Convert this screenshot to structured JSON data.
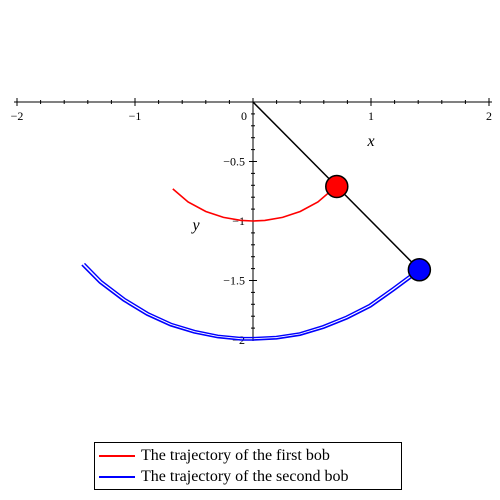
{
  "chart_data": {
    "type": "line",
    "title": "",
    "xlabel": "x",
    "ylabel": "y",
    "xlim": [
      -2,
      2
    ],
    "ylim": [
      -2.7,
      0.8
    ],
    "x_ticks": [
      -2,
      -1,
      0,
      1,
      2
    ],
    "x_tick_labels": [
      "-2",
      "-1",
      "0",
      "1",
      "2"
    ],
    "y_ticks": [
      -0.5,
      -1,
      -1.5,
      -2
    ],
    "y_tick_labels": [
      "-0.5",
      "-1",
      "-1.5",
      "-2"
    ],
    "grid": false,
    "legend_placement": "bottom",
    "series": [
      {
        "name": "The trajectory of the first bob",
        "color": "#ff0000",
        "x": [
          -0.68,
          -0.55,
          -0.4,
          -0.25,
          -0.1,
          0.0,
          0.1,
          0.25,
          0.4,
          0.55,
          0.68,
          0.71
        ],
        "y": [
          -0.73,
          -0.84,
          -0.92,
          -0.97,
          -0.995,
          -1.0,
          -0.995,
          -0.97,
          -0.92,
          -0.84,
          -0.73,
          -0.71
        ]
      },
      {
        "name": "The trajectory of the second bob",
        "color": "#0000ff",
        "x": [
          -1.45,
          -1.3,
          -1.1,
          -0.9,
          -0.7,
          -0.5,
          -0.3,
          -0.1,
          0.0,
          0.2,
          0.4,
          0.6,
          0.8,
          1.0,
          1.2,
          1.35,
          1.41
        ],
        "y": [
          -1.37,
          -1.52,
          -1.67,
          -1.79,
          -1.88,
          -1.94,
          -1.98,
          -2.0,
          -2.0,
          -1.99,
          -1.96,
          -1.9,
          -1.82,
          -1.72,
          -1.58,
          -1.47,
          -1.41
        ]
      }
    ],
    "pendulum": {
      "pivot": [
        0,
        0
      ],
      "bob1": [
        0.71,
        -0.71
      ],
      "bob2": [
        1.41,
        -1.41
      ],
      "rod_color": "#000000",
      "bob1_color": "#ff0000",
      "bob2_color": "#0000ff"
    }
  }
}
